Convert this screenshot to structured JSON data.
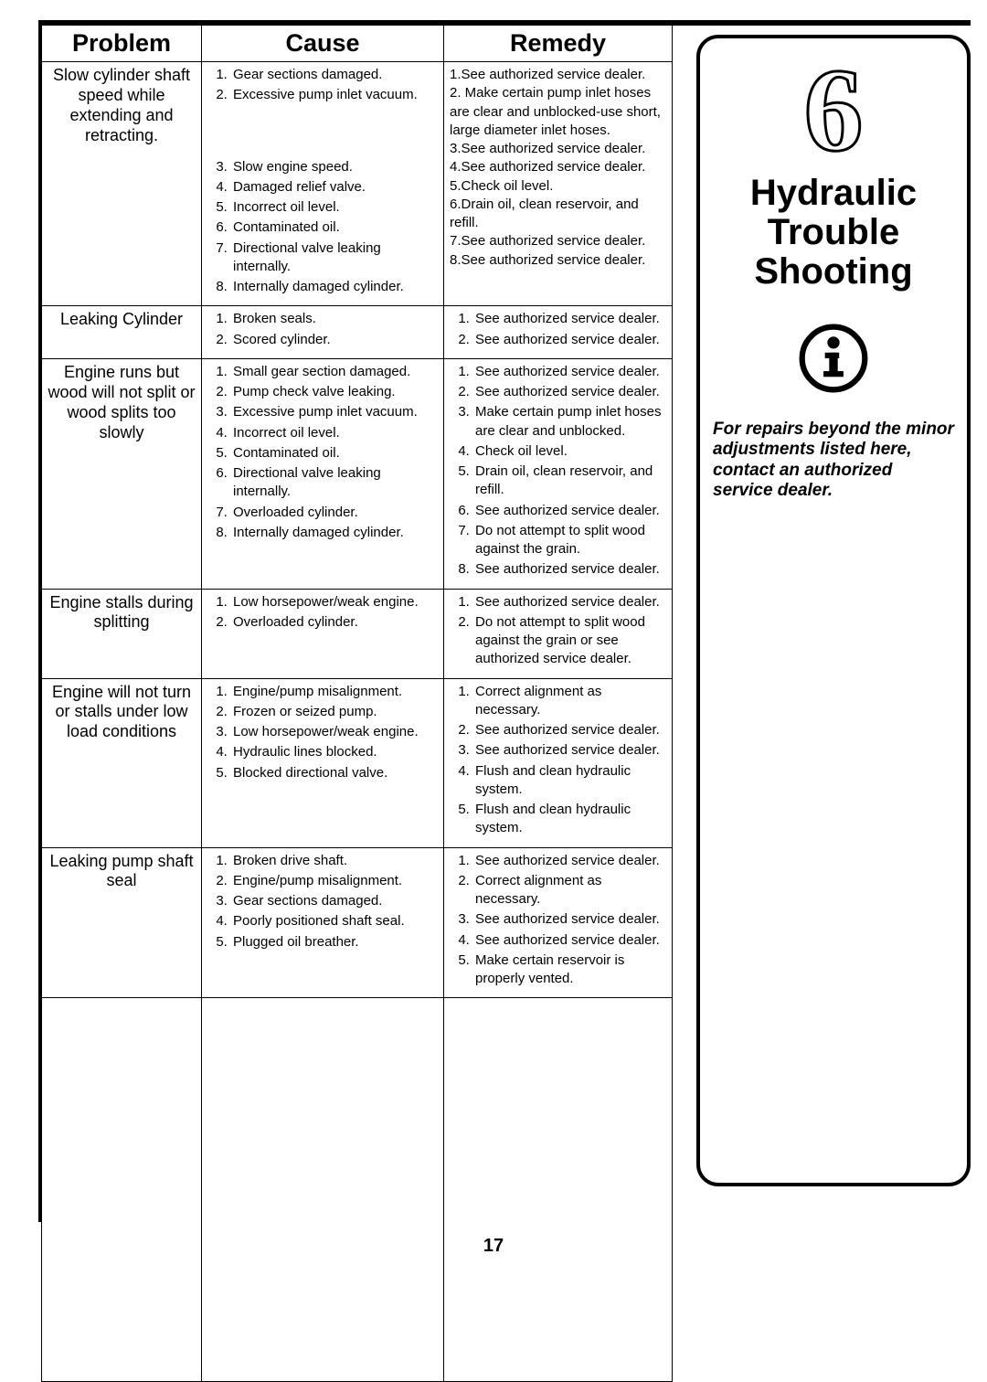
{
  "page_number": "17",
  "headers": {
    "problem": "Problem",
    "cause": "Cause",
    "remedy": "Remedy"
  },
  "sidebar": {
    "chapter_number": "6",
    "title_line1": "Hydraulic",
    "title_line2": "Trouble",
    "title_line3": "Shooting",
    "note": "For repairs beyond the minor adjust­ments listed here, contact an authorized service dealer."
  },
  "cause_gap_before": {
    "0": {
      "3": 56
    }
  },
  "rows": [
    {
      "problem": "Slow cylinder shaft speed while extending and retracting.",
      "causes": [
        "Gear sections damaged.",
        "Excessive pump inlet vacuum.",
        "Slow engine speed.",
        "Damaged relief valve.",
        "Incorrect oil level.",
        "Contaminated oil.",
        "Directional valve leaking internally.",
        "Internally damaged cylinder."
      ],
      "remedies_raw": "1.See authorized service dealer.\n2.  Make certain pump inlet hoses are clear and unblocked-use short, large diameter inlet hoses.\n3.See authorized service dealer.\n4.See authorized service dealer.\n5.Check oil level.\n6.Drain oil, clean reservoir, and refill.\n7.See authorized service dealer.\n8.See authorized service dealer."
    },
    {
      "problem": "Leaking Cylinder",
      "causes": [
        "Broken seals.",
        "Scored cylinder."
      ],
      "remedies": [
        "See authorized service dealer.",
        "See authorized service dealer."
      ]
    },
    {
      "problem": "Engine runs but wood will not split or wood splits too slowly",
      "causes": [
        "Small gear section damaged.",
        "Pump check valve leaking.",
        "Excessive pump inlet vacuum.",
        "Incorrect oil level.",
        "Contaminated oil.",
        "Directional valve leaking internally.",
        "Overloaded cylinder.",
        "Internally damaged cylinder."
      ],
      "remedies": [
        "See authorized service dealer.",
        "See authorized service dealer.",
        "Make certain pump inlet hoses are clear and unblocked.",
        "Check oil level.",
        "Drain oil, clean reservoir, and refill.",
        "See authorized service dealer.",
        "Do not attempt to split wood against the grain.",
        "See authorized service dealer."
      ]
    },
    {
      "problem": "Engine stalls during splitting",
      "causes": [
        "Low horsepower/weak engine.",
        "Overloaded cylinder."
      ],
      "remedies": [
        "See authorized service dealer.",
        "Do not attempt to split wood against the grain or see authorized service dealer."
      ]
    },
    {
      "problem": "Engine will not turn or stalls under low load conditions",
      "causes": [
        "Engine/pump misalignment.",
        "Frozen or seized pump.",
        "Low horsepower/weak engine.",
        "Hydraulic lines blocked.",
        "Blocked directional valve."
      ],
      "remedies": [
        "Correct alignment as necessary.",
        "See authorized service dealer.",
        "See authorized service dealer.",
        "Flush and clean hydraulic system.",
        "Flush and clean hydraulic system."
      ]
    },
    {
      "problem": "Leaking pump shaft seal",
      "causes": [
        "Broken drive shaft.",
        "Engine/pump misalignment.",
        "Gear sections damaged.",
        "Poorly positioned shaft seal.",
        "Plugged oil breather."
      ],
      "remedies": [
        "See authorized service dealer.",
        "Correct alignment as necessary.",
        "See authorized service dealer.",
        "See authorized service dealer.",
        "Make certain reservoir is properly vented."
      ]
    }
  ],
  "colors": {
    "border": "#000000",
    "text": "#000000",
    "bg": "#ffffff"
  }
}
